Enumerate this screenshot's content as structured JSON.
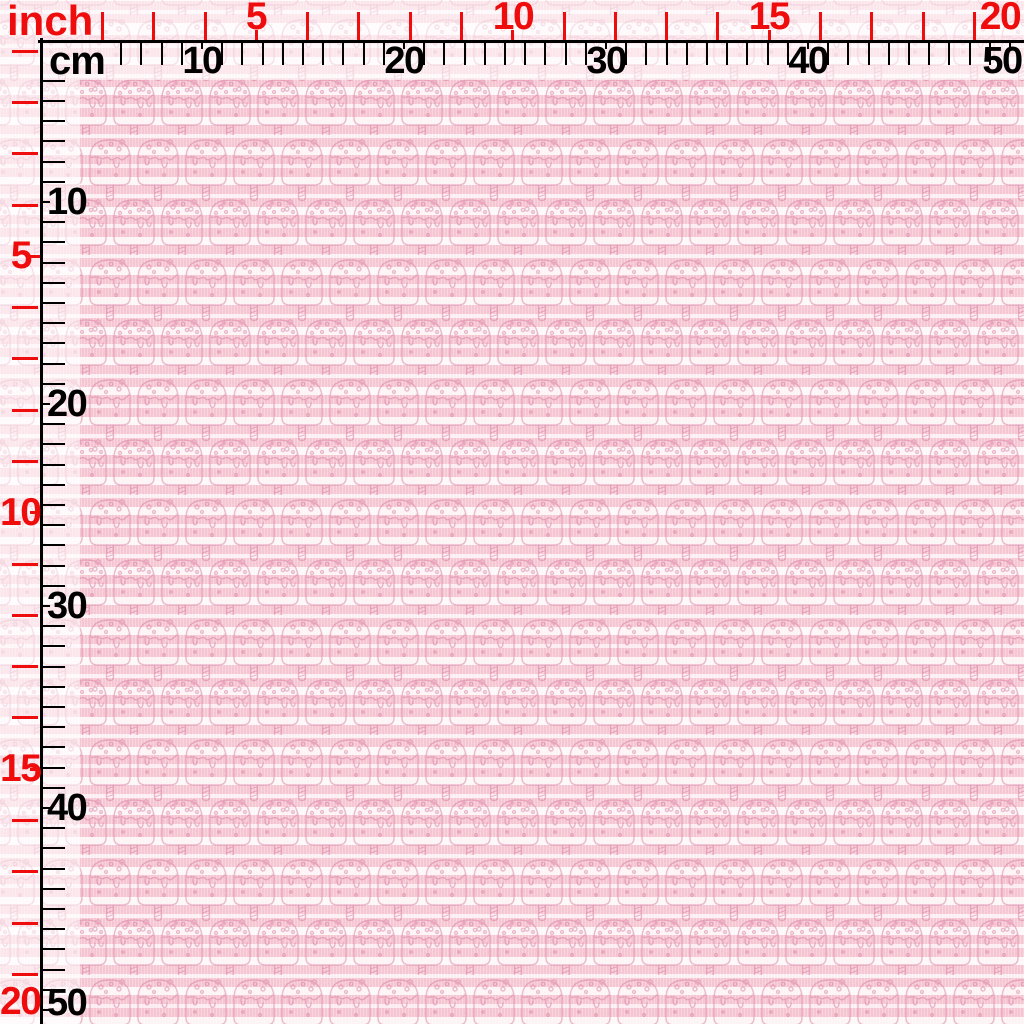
{
  "image_kind": "fabric swatch product photo with measurement rulers",
  "fabric": {
    "pattern_name": "popsicle ice-cream bars with drips and sprinkles on pink and white horizontal stripes",
    "colors": {
      "stripe_pink": "#f5c3d0",
      "stripe_white": "#fdf7f8",
      "motif_outline_pink": "#d4719a",
      "ruler_red": "#ee0c0c",
      "ruler_black": "#000000"
    }
  },
  "rulers": {
    "top_inch": {
      "unit_label": "inch",
      "labels": [
        "5",
        "10",
        "15",
        "20"
      ],
      "label_step": 5,
      "max_units": 20
    },
    "top_cm": {
      "unit_label": "cm",
      "labels": [
        "10",
        "20",
        "30",
        "40",
        "50"
      ],
      "label_step": 10,
      "max_units": 50
    },
    "left_inch": {
      "labels": [
        "5",
        "10",
        "15",
        "20"
      ],
      "label_step": 5,
      "max_units": 20
    },
    "left_cm": {
      "labels": [
        "10",
        "20",
        "30",
        "40",
        "50"
      ],
      "label_step": 10,
      "max_units": 50
    }
  }
}
